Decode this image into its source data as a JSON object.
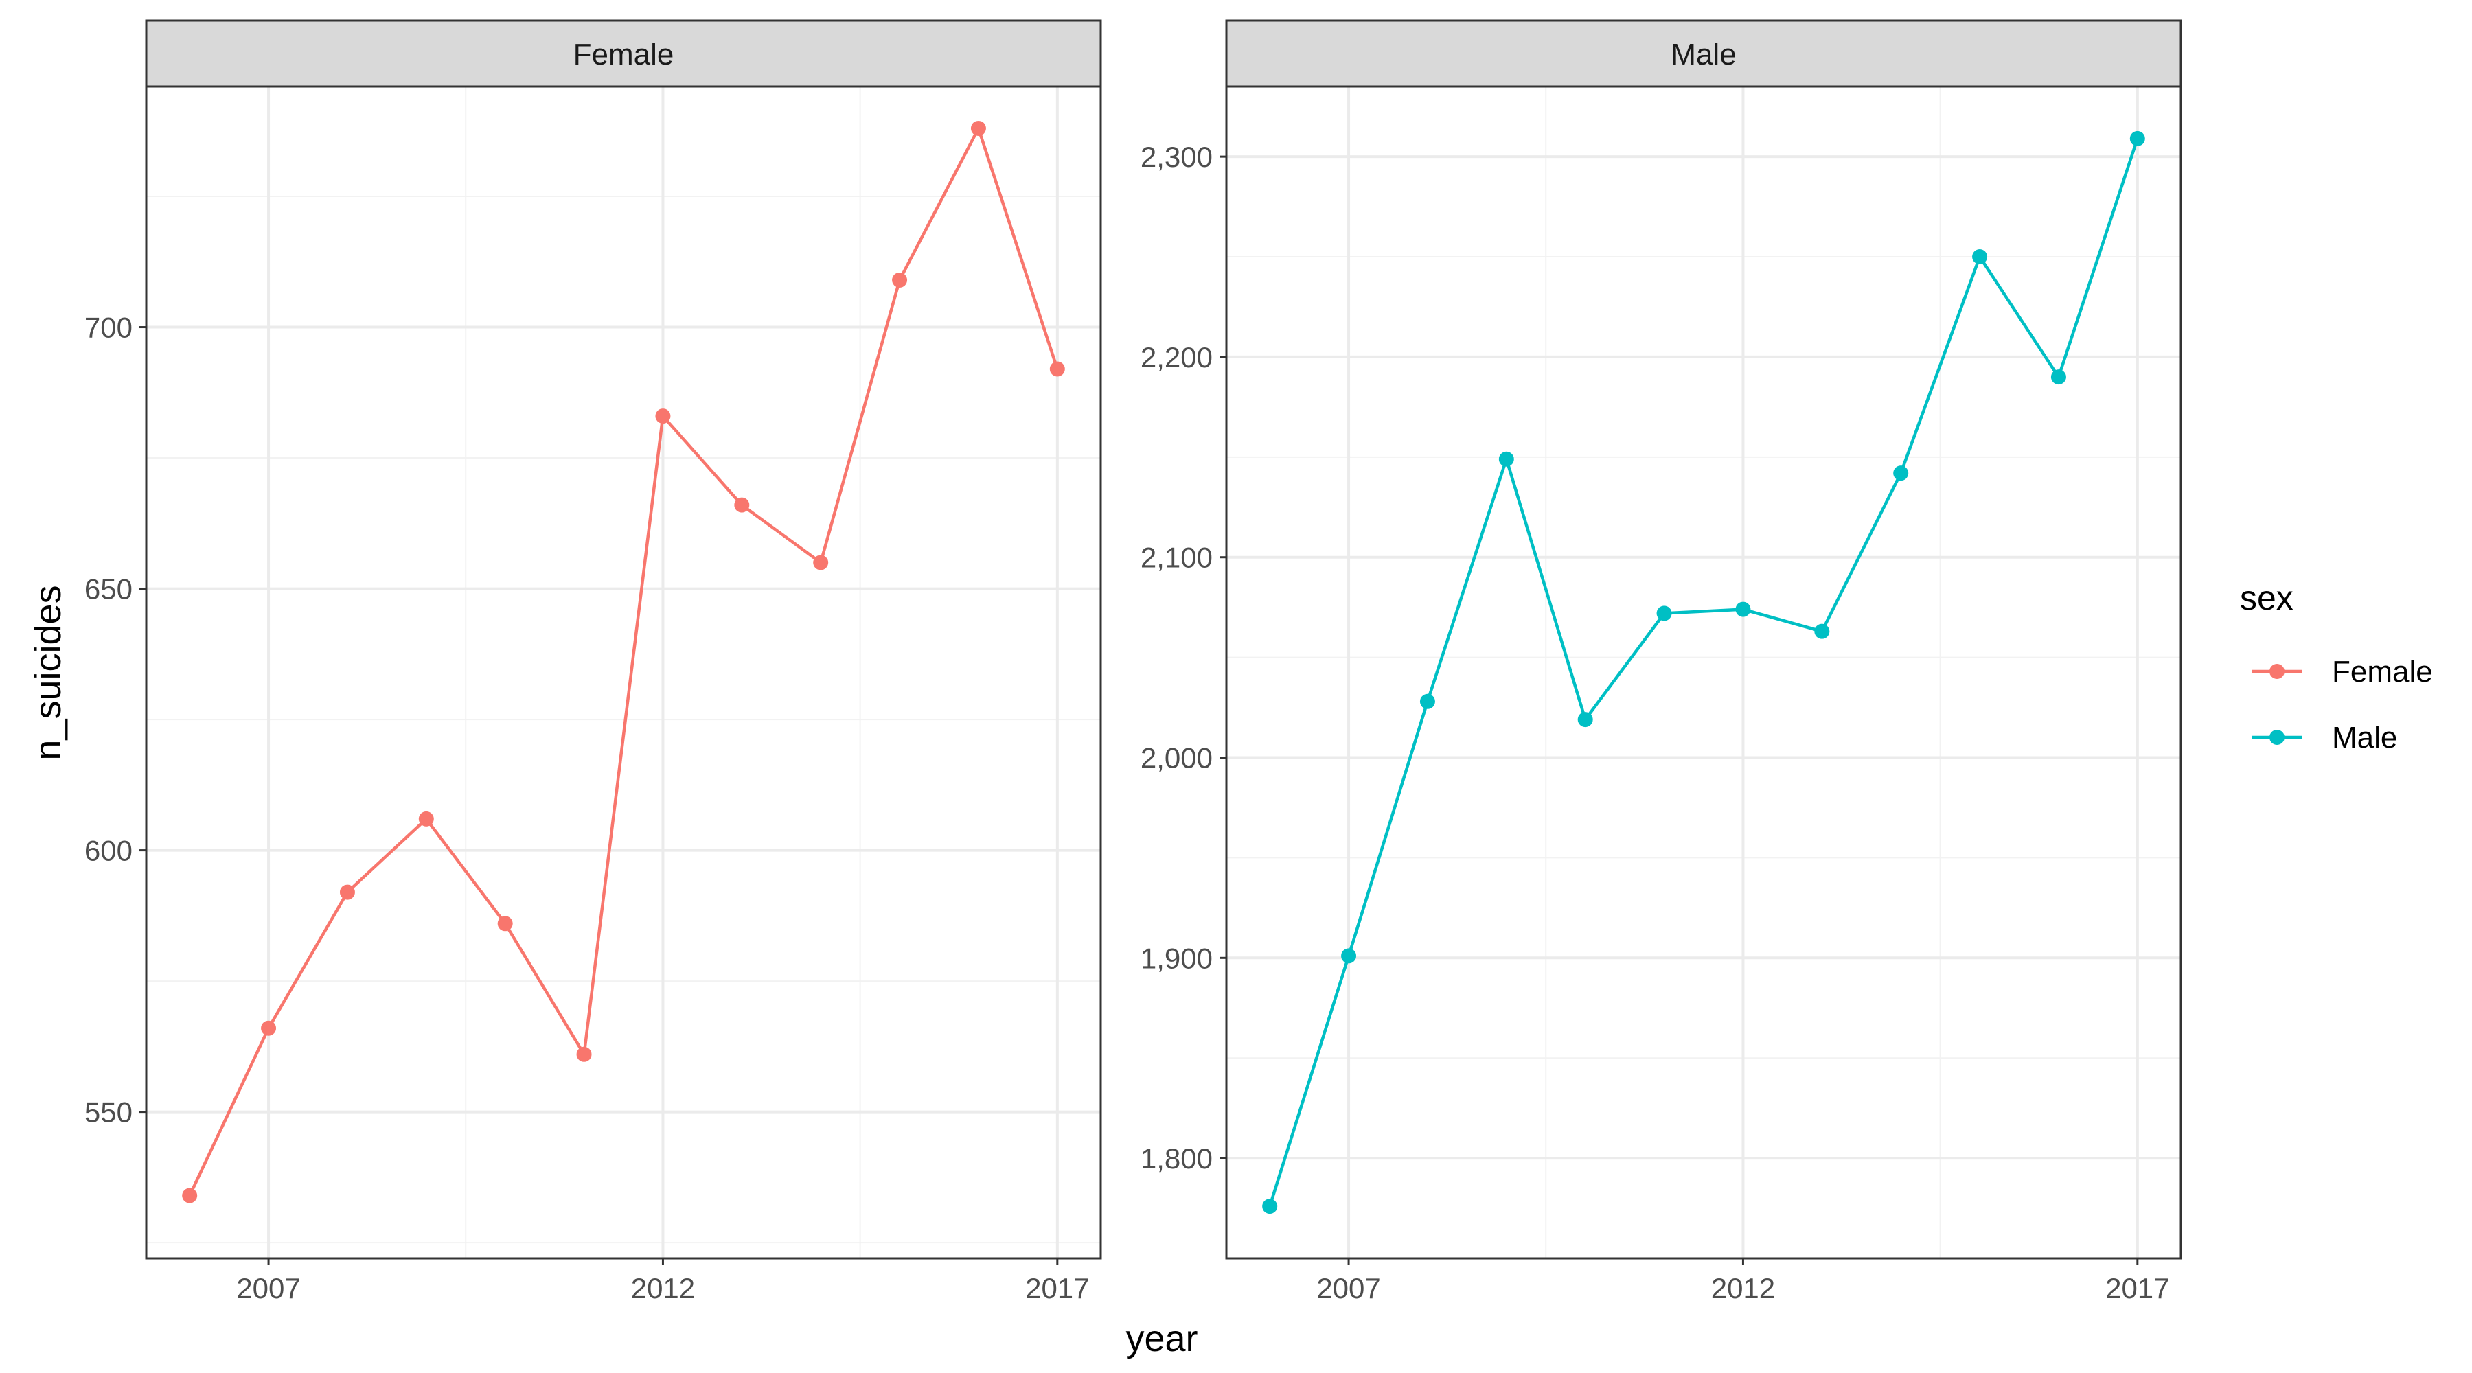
{
  "chart_data": {
    "type": "line",
    "facets": [
      {
        "strip_label": "Female",
        "x": [
          2006,
          2007,
          2008,
          2009,
          2010,
          2011,
          2012,
          2013,
          2014,
          2015,
          2016,
          2017
        ],
        "y": [
          534,
          566,
          592,
          606,
          586,
          561,
          683,
          666,
          655,
          709,
          738,
          692
        ],
        "color": "#F8766D",
        "yticks": [
          550,
          600,
          650,
          700
        ],
        "ytick_labels": [
          "550",
          "600",
          "650",
          "700"
        ],
        "ylim": [
          522,
          746
        ],
        "xticks": [
          2007,
          2012,
          2017
        ],
        "xtick_labels": [
          "2007",
          "2012",
          "2017"
        ],
        "xlim": [
          2005.45,
          2017.55
        ]
      },
      {
        "strip_label": "Male",
        "x": [
          2006,
          2007,
          2008,
          2009,
          2010,
          2011,
          2012,
          2013,
          2014,
          2015,
          2016,
          2017
        ],
        "y": [
          1776,
          1901,
          2028,
          2149,
          2019,
          2072,
          2074,
          2063,
          2142,
          2250,
          2190,
          2309
        ],
        "color": "#00BFC4",
        "yticks": [
          1800,
          1900,
          2000,
          2100,
          2200,
          2300
        ],
        "ytick_labels": [
          "1,800",
          "1,900",
          "2,000",
          "2,100",
          "2,200",
          "2,300"
        ],
        "ylim": [
          1750,
          2335
        ],
        "xticks": [
          2007,
          2012,
          2017
        ],
        "xtick_labels": [
          "2007",
          "2012",
          "2017"
        ],
        "xlim": [
          2005.45,
          2017.55
        ]
      }
    ],
    "xlabel": "year",
    "ylabel": "n_suicides",
    "legend": {
      "title": "sex",
      "position": "right",
      "entries": [
        {
          "label": "Female",
          "color": "#F8766D"
        },
        {
          "label": "Male",
          "color": "#00BFC4"
        }
      ]
    },
    "grid": true
  }
}
